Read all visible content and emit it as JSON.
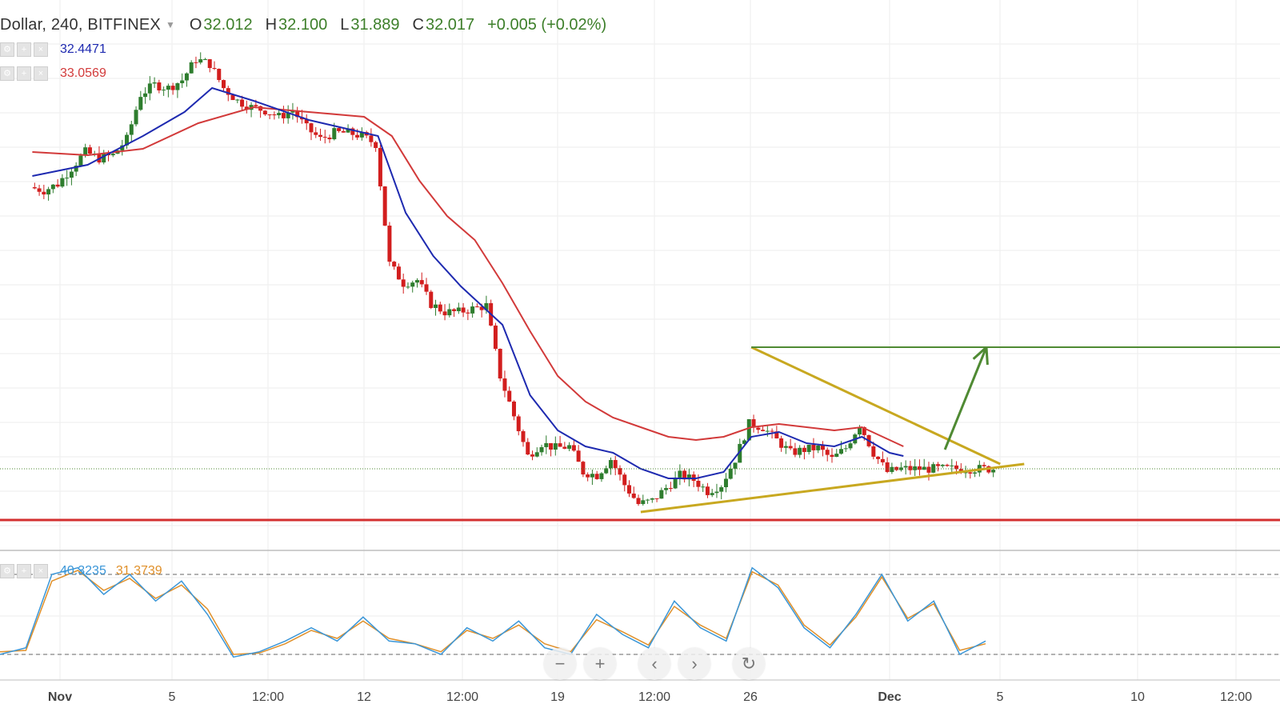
{
  "header": {
    "symbol_label": "Dollar, 240, BITFINEX",
    "open_key": "O",
    "open": "32.012",
    "high_key": "H",
    "high": "32.100",
    "low_key": "L",
    "low": "31.889",
    "close_key": "C",
    "close": "32.017",
    "change": "+0.005 (+0.02%)",
    "icons": {
      "dropdown": "chevron-down-icon",
      "settings": "gear-icon",
      "add": "plus-icon",
      "remove": "close-icon"
    }
  },
  "indicators": {
    "ma_fast": {
      "value": "32.4471",
      "color": "#1e2ab0"
    },
    "ma_slow": {
      "value": "33.0569",
      "color": "#d23a3a"
    },
    "stoch_k": {
      "value": "40.3235",
      "color": "#3a96d8"
    },
    "stoch_d": {
      "value": "31.3739",
      "color": "#e0902a"
    }
  },
  "colors": {
    "up_candle": "#2e7d2e",
    "down_candle": "#d21e1e",
    "triangle": "#c8a820",
    "target_arrow": "#4f8a33",
    "support": "#d32f2f",
    "grid": "#eeeeee"
  },
  "nav_buttons": [
    {
      "name": "zoom-out-button",
      "icon": "minus-icon",
      "glyph": "−"
    },
    {
      "name": "zoom-in-button",
      "icon": "plus-icon",
      "glyph": "+"
    },
    {
      "name": "scroll-left-button",
      "icon": "chevron-left-icon",
      "glyph": "‹"
    },
    {
      "name": "scroll-right-button",
      "icon": "chevron-right-icon",
      "glyph": "›"
    },
    {
      "name": "reset-chart-button",
      "icon": "reset-icon",
      "glyph": "↻"
    }
  ],
  "chart_data": {
    "type": "candlestick",
    "interval": "240",
    "x_ticks": [
      "Nov",
      "5",
      "12:00",
      "12",
      "12:00",
      "19",
      "12:00",
      "26",
      "Dec",
      "5",
      "10",
      "12:00"
    ],
    "price_range": [
      31.4,
      34.45
    ],
    "series": [
      {
        "name": "price",
        "points": [
          [
            "Oct 31 00:00",
            33.48
          ],
          [
            "Oct 31 12:00",
            33.46
          ],
          [
            "Nov 1 00:00",
            33.5
          ],
          [
            "Nov 1 12:00",
            33.6
          ],
          [
            "Nov 2 00:00",
            33.7
          ],
          [
            "Nov 2 12:00",
            33.66
          ],
          [
            "Nov 3 00:00",
            33.68
          ],
          [
            "Nov 3 12:00",
            33.78
          ],
          [
            "Nov 4 00:00",
            34.06
          ],
          [
            "Nov 4 12:00",
            34.12
          ],
          [
            "Nov 5 00:00",
            34.1
          ],
          [
            "Nov 5 12:00",
            34.15
          ],
          [
            "Nov 6 00:00",
            34.28
          ],
          [
            "Nov 6 12:00",
            34.25
          ],
          [
            "Nov 7 00:00",
            34.1
          ],
          [
            "Nov 7 12:00",
            34.02
          ],
          [
            "Nov 8 00:00",
            33.98
          ],
          [
            "Nov 8 12:00",
            33.96
          ],
          [
            "Nov 9 00:00",
            33.92
          ],
          [
            "Nov 9 12:00",
            33.96
          ],
          [
            "Nov 10 00:00",
            33.85
          ],
          [
            "Nov 10 12:00",
            33.78
          ],
          [
            "Nov 11 00:00",
            33.82
          ],
          [
            "Nov 11 12:00",
            33.82
          ],
          [
            "Nov 12 00:00",
            33.8
          ],
          [
            "Nov 12 12:00",
            33.75
          ],
          [
            "Nov 13 00:00",
            33.0
          ],
          [
            "Nov 13 12:00",
            32.88
          ],
          [
            "Nov 14 00:00",
            32.9
          ],
          [
            "Nov 14 12:00",
            32.75
          ],
          [
            "Nov 15 00:00",
            32.7
          ],
          [
            "Nov 15 12:00",
            32.7
          ],
          [
            "Nov 16 00:00",
            32.72
          ],
          [
            "Nov 16 12:00",
            32.74
          ],
          [
            "Nov 17 00:00",
            32.3
          ],
          [
            "Nov 17 12:00",
            32.05
          ],
          [
            "Nov 18 00:00",
            31.8
          ],
          [
            "Nov 18 12:00",
            31.88
          ],
          [
            "Nov 19 00:00",
            31.85
          ],
          [
            "Nov 19 12:00",
            31.86
          ],
          [
            "Nov 20 00:00",
            31.7
          ],
          [
            "Nov 20 12:00",
            31.68
          ],
          [
            "Nov 21 00:00",
            31.78
          ],
          [
            "Nov 21 12:00",
            31.62
          ],
          [
            "Nov 22 00:00",
            31.5
          ],
          [
            "Nov 22 12:00",
            31.52
          ],
          [
            "Nov 23 00:00",
            31.6
          ],
          [
            "Nov 23 12:00",
            31.68
          ],
          [
            "Nov 24 00:00",
            31.65
          ],
          [
            "Nov 24 12:00",
            31.58
          ],
          [
            "Nov 25 00:00",
            31.62
          ],
          [
            "Nov 25 12:00",
            31.78
          ],
          [
            "Nov 26 00:00",
            32.0
          ],
          [
            "Nov 26 12:00",
            31.98
          ],
          [
            "Nov 27 00:00",
            31.9
          ],
          [
            "Nov 27 12:00",
            31.82
          ],
          [
            "Nov 28 00:00",
            31.84
          ],
          [
            "Nov 28 12:00",
            31.85
          ],
          [
            "Nov 29 00:00",
            31.78
          ],
          [
            "Nov 29 12:00",
            31.85
          ],
          [
            "Nov 30 00:00",
            32.0
          ],
          [
            "Nov 30 12:00",
            31.82
          ],
          [
            "Dec 1 00:00",
            31.7
          ],
          [
            "Dec 1 12:00",
            31.72
          ]
        ]
      },
      {
        "name": "ma_fast",
        "points": [
          [
            "Oct 31 00:00",
            33.55
          ],
          [
            "Nov 2 00:00",
            33.62
          ],
          [
            "Nov 4 00:00",
            33.8
          ],
          [
            "Nov 5 12:00",
            33.95
          ],
          [
            "Nov 6 12:00",
            34.1
          ],
          [
            "Nov 8 00:00",
            34.02
          ],
          [
            "Nov 10 00:00",
            33.9
          ],
          [
            "Nov 11 12:00",
            33.84
          ],
          [
            "Nov 12 12:00",
            33.8
          ],
          [
            "Nov 13 12:00",
            33.32
          ],
          [
            "Nov 14 12:00",
            33.05
          ],
          [
            "Nov 15 12:00",
            32.86
          ],
          [
            "Nov 17 00:00",
            32.62
          ],
          [
            "Nov 18 00:00",
            32.18
          ],
          [
            "Nov 19 00:00",
            31.96
          ],
          [
            "Nov 20 00:00",
            31.86
          ],
          [
            "Nov 21 00:00",
            31.82
          ],
          [
            "Nov 22 00:00",
            31.72
          ],
          [
            "Nov 23 00:00",
            31.66
          ],
          [
            "Nov 24 00:00",
            31.66
          ],
          [
            "Nov 25 00:00",
            31.7
          ],
          [
            "Nov 26 00:00",
            31.92
          ],
          [
            "Nov 27 00:00",
            31.95
          ],
          [
            "Nov 28 00:00",
            31.88
          ],
          [
            "Nov 29 00:00",
            31.86
          ],
          [
            "Nov 30 00:00",
            31.92
          ],
          [
            "Dec 1 00:00",
            31.82
          ],
          [
            "Dec 1 12:00",
            31.8
          ]
        ]
      },
      {
        "name": "ma_slow",
        "points": [
          [
            "Oct 31 00:00",
            33.7
          ],
          [
            "Nov 2 00:00",
            33.68
          ],
          [
            "Nov 4 00:00",
            33.72
          ],
          [
            "Nov 6 00:00",
            33.88
          ],
          [
            "Nov 8 00:00",
            33.98
          ],
          [
            "Nov 10 00:00",
            33.95
          ],
          [
            "Nov 12 00:00",
            33.92
          ],
          [
            "Nov 13 00:00",
            33.8
          ],
          [
            "Nov 14 00:00",
            33.52
          ],
          [
            "Nov 15 00:00",
            33.3
          ],
          [
            "Nov 16 00:00",
            33.15
          ],
          [
            "Nov 17 00:00",
            32.88
          ],
          [
            "Nov 18 00:00",
            32.58
          ],
          [
            "Nov 19 00:00",
            32.3
          ],
          [
            "Nov 20 00:00",
            32.14
          ],
          [
            "Nov 21 00:00",
            32.04
          ],
          [
            "Nov 22 00:00",
            31.98
          ],
          [
            "Nov 23 00:00",
            31.92
          ],
          [
            "Nov 24 00:00",
            31.9
          ],
          [
            "Nov 25 00:00",
            31.92
          ],
          [
            "Nov 26 00:00",
            31.98
          ],
          [
            "Nov 27 00:00",
            32.0
          ],
          [
            "Nov 28 00:00",
            31.98
          ],
          [
            "Nov 29 00:00",
            31.96
          ],
          [
            "Nov 30 00:00",
            31.98
          ],
          [
            "Dec 1 00:00",
            31.9
          ],
          [
            "Dec 1 12:00",
            31.86
          ]
        ]
      }
    ],
    "annotations": {
      "support_level": 31.4,
      "target_level": 32.48,
      "triangle_upper": [
        [
          "Nov 26 00:00",
          32.48
        ],
        [
          "Dec 5 00:00",
          31.75
        ]
      ],
      "triangle_lower": [
        [
          "Nov 22 00:00",
          31.45
        ],
        [
          "Dec 5 00:00",
          31.75
        ]
      ],
      "breakout_arrow": [
        [
          "Dec 3 00:00",
          31.84
        ],
        [
          "Dec 4 12:00",
          32.48
        ]
      ]
    },
    "oscillator": {
      "levels": [
        80,
        20
      ],
      "k_points": [
        [
          0,
          20
        ],
        [
          2,
          25
        ],
        [
          4,
          80
        ],
        [
          6,
          85
        ],
        [
          8,
          65
        ],
        [
          10,
          80
        ],
        [
          12,
          60
        ],
        [
          14,
          75
        ],
        [
          16,
          50
        ],
        [
          18,
          18
        ],
        [
          20,
          22
        ],
        [
          22,
          30
        ],
        [
          24,
          40
        ],
        [
          26,
          30
        ],
        [
          28,
          48
        ],
        [
          30,
          30
        ],
        [
          32,
          28
        ],
        [
          34,
          20
        ],
        [
          36,
          40
        ],
        [
          38,
          30
        ],
        [
          40,
          45
        ],
        [
          42,
          25
        ],
        [
          44,
          20
        ],
        [
          46,
          50
        ],
        [
          48,
          35
        ],
        [
          50,
          25
        ],
        [
          52,
          60
        ],
        [
          54,
          40
        ],
        [
          56,
          30
        ],
        [
          58,
          85
        ],
        [
          60,
          70
        ],
        [
          62,
          40
        ],
        [
          64,
          25
        ],
        [
          66,
          50
        ],
        [
          68,
          80
        ],
        [
          70,
          45
        ],
        [
          72,
          60
        ],
        [
          74,
          20
        ],
        [
          76,
          30
        ]
      ],
      "d_points": [
        [
          0,
          22
        ],
        [
          2,
          23
        ],
        [
          4,
          75
        ],
        [
          6,
          83
        ],
        [
          8,
          68
        ],
        [
          10,
          77
        ],
        [
          12,
          62
        ],
        [
          14,
          72
        ],
        [
          16,
          54
        ],
        [
          18,
          20
        ],
        [
          20,
          21
        ],
        [
          22,
          28
        ],
        [
          24,
          38
        ],
        [
          26,
          32
        ],
        [
          28,
          45
        ],
        [
          30,
          32
        ],
        [
          32,
          28
        ],
        [
          34,
          22
        ],
        [
          36,
          38
        ],
        [
          38,
          32
        ],
        [
          40,
          42
        ],
        [
          42,
          28
        ],
        [
          44,
          22
        ],
        [
          46,
          46
        ],
        [
          48,
          37
        ],
        [
          50,
          27
        ],
        [
          52,
          56
        ],
        [
          54,
          42
        ],
        [
          56,
          32
        ],
        [
          58,
          82
        ],
        [
          60,
          72
        ],
        [
          62,
          42
        ],
        [
          64,
          27
        ],
        [
          66,
          48
        ],
        [
          68,
          78
        ],
        [
          70,
          47
        ],
        [
          72,
          58
        ],
        [
          74,
          23
        ],
        [
          76,
          28
        ]
      ]
    }
  }
}
